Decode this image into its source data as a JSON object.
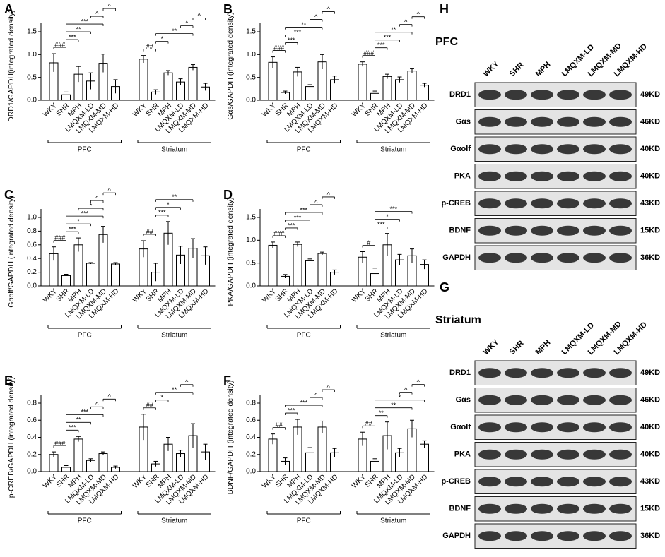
{
  "chart_data": [
    {
      "panel": "A",
      "type": "bar",
      "ylabel": "DRD1/GAPDH(integrated density)",
      "categories": [
        "WKY",
        "SHR",
        "MPH",
        "LMQXM-LD",
        "LMQXM-MD",
        "LMQXM-HD",
        "WKY",
        "SHR",
        "MPH",
        "LMQXM-LD",
        "LMQXM-MD",
        "LMQXM-HD"
      ],
      "groups": [
        "PFC",
        "Striatum"
      ],
      "values": [
        0.82,
        0.12,
        0.57,
        0.42,
        0.81,
        0.3,
        0.9,
        0.18,
        0.6,
        0.4,
        0.72,
        0.29
      ],
      "errors": [
        0.2,
        0.06,
        0.17,
        0.18,
        0.2,
        0.15,
        0.08,
        0.05,
        0.05,
        0.07,
        0.06,
        0.08
      ],
      "ylim": [
        0,
        1.5
      ],
      "yticks": [
        {
          "value": 0,
          "label": "0.0"
        },
        0.5,
        {
          "value": 1,
          "label": "1.0"
        },
        1.5
      ],
      "annotations": [
        {
          "from": 0,
          "to": 1,
          "label": "###"
        },
        {
          "from": 1,
          "to": 2,
          "label": "***"
        },
        {
          "from": 1,
          "to": 3,
          "label": "**"
        },
        {
          "from": 1,
          "to": 4,
          "label": "***"
        },
        {
          "from": 3,
          "to": 4,
          "label": "^"
        },
        {
          "from": 4,
          "to": 5,
          "label": "^"
        },
        {
          "from": 6,
          "to": 7,
          "label": "##"
        },
        {
          "from": 7,
          "to": 8,
          "label": "*"
        },
        {
          "from": 7,
          "to": 10,
          "label": "**"
        },
        {
          "from": 9,
          "to": 10,
          "label": "^"
        },
        {
          "from": 10,
          "to": 11,
          "label": "^"
        }
      ]
    },
    {
      "panel": "B",
      "type": "bar",
      "ylabel": "Gαs/GAPDH (integrated density)",
      "categories": [
        "WKY",
        "SHR",
        "MPH",
        "LMQXM-LD",
        "LMQXM-MD",
        "LMQXM-HD",
        "WKY",
        "SHR",
        "MPH",
        "LMQXM-LD",
        "LMQXM-MD",
        "LMQXM-HD"
      ],
      "groups": [
        "PFC",
        "Striatum"
      ],
      "values": [
        0.83,
        0.17,
        0.62,
        0.3,
        0.84,
        0.45,
        0.79,
        0.15,
        0.52,
        0.45,
        0.64,
        0.33
      ],
      "errors": [
        0.12,
        0.03,
        0.1,
        0.04,
        0.16,
        0.08,
        0.05,
        0.05,
        0.05,
        0.06,
        0.05,
        0.04
      ],
      "ylim": [
        0,
        1.5
      ],
      "yticks": [
        {
          "value": 0,
          "label": "0.0"
        },
        0.5,
        {
          "value": 1,
          "label": "1.0"
        },
        1.5
      ],
      "annotations": [
        {
          "from": 0,
          "to": 1,
          "label": "###"
        },
        {
          "from": 1,
          "to": 2,
          "label": "***"
        },
        {
          "from": 1,
          "to": 3,
          "label": "***"
        },
        {
          "from": 1,
          "to": 4,
          "label": "**"
        },
        {
          "from": 3,
          "to": 4,
          "label": "^"
        },
        {
          "from": 4,
          "to": 5,
          "label": "^"
        },
        {
          "from": 6,
          "to": 7,
          "label": "###"
        },
        {
          "from": 7,
          "to": 8,
          "label": "***"
        },
        {
          "from": 7,
          "to": 9,
          "label": "***"
        },
        {
          "from": 7,
          "to": 10,
          "label": "**"
        },
        {
          "from": 9,
          "to": 10,
          "label": "^"
        },
        {
          "from": 10,
          "to": 11,
          "label": "^"
        }
      ]
    },
    {
      "panel": "C",
      "type": "bar",
      "ylabel": "Gαolf/GAPDH (integrated density)",
      "categories": [
        "WKY",
        "SHR",
        "MPH",
        "LMQXM-LD",
        "LMQXM-MD",
        "LMQXM-HD",
        "WKY",
        "SHR",
        "MPH",
        "LMQXM-LD",
        "LMQXM-MD",
        "LMQXM-HD"
      ],
      "groups": [
        "PFC",
        "Striatum"
      ],
      "values": [
        0.47,
        0.15,
        0.6,
        0.33,
        0.75,
        0.32,
        0.54,
        0.2,
        0.77,
        0.45,
        0.55,
        0.44
      ],
      "errors": [
        0.1,
        0.02,
        0.1,
        0.01,
        0.12,
        0.02,
        0.12,
        0.13,
        0.17,
        0.13,
        0.14,
        0.13
      ],
      "ylim": [
        0,
        1
      ],
      "yticks": [
        {
          "value": 0,
          "label": "0.0"
        },
        0.2,
        0.4,
        0.6,
        0.8,
        {
          "value": 1,
          "label": "1.0"
        }
      ],
      "annotations": [
        {
          "from": 0,
          "to": 1,
          "label": "###"
        },
        {
          "from": 1,
          "to": 2,
          "label": "***"
        },
        {
          "from": 1,
          "to": 3,
          "label": "*"
        },
        {
          "from": 1,
          "to": 4,
          "label": "***"
        },
        {
          "from": 2,
          "to": 4,
          "label": "*"
        },
        {
          "from": 3,
          "to": 4,
          "label": "^"
        },
        {
          "from": 4,
          "to": 5,
          "label": "^"
        },
        {
          "from": 6,
          "to": 7,
          "label": "##"
        },
        {
          "from": 7,
          "to": 8,
          "label": "***"
        },
        {
          "from": 7,
          "to": 9,
          "label": "*"
        },
        {
          "from": 7,
          "to": 10,
          "label": "**"
        }
      ]
    },
    {
      "panel": "D",
      "type": "bar",
      "ylabel": "PKA/GAPDH (integrated density)",
      "categories": [
        "WKY",
        "SHR",
        "MPH",
        "LMQXM-LD",
        "LMQXM-MD",
        "LMQXM-HD",
        "WKY",
        "SHR",
        "MPH",
        "LMQXM-LD",
        "LMQXM-MD",
        "LMQXM-HD"
      ],
      "groups": [
        "PFC",
        "Striatum"
      ],
      "values": [
        0.89,
        0.21,
        0.91,
        0.55,
        0.71,
        0.3,
        0.63,
        0.27,
        0.9,
        0.57,
        0.66,
        0.47
      ],
      "errors": [
        0.07,
        0.04,
        0.05,
        0.04,
        0.03,
        0.05,
        0.12,
        0.12,
        0.25,
        0.12,
        0.15,
        0.1
      ],
      "ylim": [
        0,
        1.5
      ],
      "yticks": [
        {
          "value": 0,
          "label": "0.0"
        },
        0.5,
        {
          "value": 1,
          "label": "1.0"
        },
        1.5
      ],
      "annotations": [
        {
          "from": 0,
          "to": 1,
          "label": "###"
        },
        {
          "from": 1,
          "to": 2,
          "label": "***"
        },
        {
          "from": 1,
          "to": 3,
          "label": "***"
        },
        {
          "from": 1,
          "to": 4,
          "label": "***"
        },
        {
          "from": 3,
          "to": 4,
          "label": "^"
        },
        {
          "from": 4,
          "to": 5,
          "label": "^"
        },
        {
          "from": 6,
          "to": 7,
          "label": "#"
        },
        {
          "from": 7,
          "to": 8,
          "label": "***"
        },
        {
          "from": 7,
          "to": 9,
          "label": "*"
        },
        {
          "from": 7,
          "to": 10,
          "label": "***"
        }
      ]
    },
    {
      "panel": "E",
      "type": "bar",
      "ylabel": "p-CREB/GAPDH (integrated density)",
      "categories": [
        "WKY",
        "SHR",
        "MPH",
        "LMQXM-LD",
        "LMQXM-MD",
        "LMQXM-HD",
        "WKY",
        "SHR",
        "MPH",
        "LMQXM-LD",
        "LMQXM-MD",
        "LMQXM-HD"
      ],
      "groups": [
        "PFC",
        "Striatum"
      ],
      "values": [
        0.2,
        0.05,
        0.38,
        0.13,
        0.21,
        0.05,
        0.52,
        0.09,
        0.32,
        0.21,
        0.42,
        0.23
      ],
      "errors": [
        0.03,
        0.02,
        0.03,
        0.02,
        0.02,
        0.015,
        0.15,
        0.03,
        0.08,
        0.04,
        0.14,
        0.09
      ],
      "ylim": [
        0,
        0.8
      ],
      "yticks": [
        {
          "value": 0,
          "label": "0.0"
        },
        0.2,
        0.4,
        0.6,
        0.8
      ],
      "annotations": [
        {
          "from": 0,
          "to": 1,
          "label": "###"
        },
        {
          "from": 1,
          "to": 2,
          "label": "***"
        },
        {
          "from": 1,
          "to": 3,
          "label": "**"
        },
        {
          "from": 1,
          "to": 4,
          "label": "***"
        },
        {
          "from": 3,
          "to": 4,
          "label": "^"
        },
        {
          "from": 4,
          "to": 5,
          "label": "^"
        },
        {
          "from": 6,
          "to": 7,
          "label": "##"
        },
        {
          "from": 7,
          "to": 8,
          "label": "*"
        },
        {
          "from": 7,
          "to": 10,
          "label": "**"
        },
        {
          "from": 9,
          "to": 10,
          "label": "^"
        }
      ]
    },
    {
      "panel": "F",
      "type": "bar",
      "ylabel": "BDNF/GAPDH (integrated density)",
      "categories": [
        "WKY",
        "SHR",
        "MPH",
        "LMQXM-LD",
        "LMQXM-MD",
        "LMQXM-HD",
        "WKY",
        "SHR",
        "MPH",
        "LMQXM-LD",
        "LMQXM-MD",
        "LMQXM-HD"
      ],
      "groups": [
        "PFC",
        "Striatum"
      ],
      "values": [
        0.38,
        0.12,
        0.52,
        0.22,
        0.52,
        0.22,
        0.38,
        0.12,
        0.42,
        0.22,
        0.5,
        0.32
      ],
      "errors": [
        0.06,
        0.04,
        0.09,
        0.06,
        0.07,
        0.05,
        0.08,
        0.03,
        0.16,
        0.05,
        0.1,
        0.04
      ],
      "ylim": [
        0,
        0.8
      ],
      "yticks": [
        {
          "value": 0,
          "label": "0.0"
        },
        0.2,
        0.4,
        0.6,
        0.8
      ],
      "annotations": [
        {
          "from": 0,
          "to": 1,
          "label": "##"
        },
        {
          "from": 1,
          "to": 2,
          "label": "***"
        },
        {
          "from": 1,
          "to": 4,
          "label": "***"
        },
        {
          "from": 3,
          "to": 4,
          "label": "^"
        },
        {
          "from": 4,
          "to": 5,
          "label": "^"
        },
        {
          "from": 6,
          "to": 7,
          "label": "##"
        },
        {
          "from": 7,
          "to": 8,
          "label": "**"
        },
        {
          "from": 7,
          "to": 10,
          "label": "**"
        },
        {
          "from": 7,
          "to": 11,
          "label": "*"
        },
        {
          "from": 9,
          "to": 10,
          "label": "^"
        },
        {
          "from": 10,
          "to": 11,
          "label": "^"
        }
      ]
    }
  ],
  "blots": [
    {
      "panel": "H",
      "title": "PFC",
      "lanes": [
        "WKY",
        "SHR",
        "MPH",
        "LMQXM-LD",
        "LMQXM-MD",
        "LMQXM-HD"
      ],
      "rows": [
        {
          "protein": "DRD1",
          "size": "49KD"
        },
        {
          "protein": "Gαs",
          "size": "46KD"
        },
        {
          "protein": "Gαolf",
          "size": "40KD"
        },
        {
          "protein": "PKA",
          "size": "40KD"
        },
        {
          "protein": "p-CREB",
          "size": "43KD"
        },
        {
          "protein": "BDNF",
          "size": "15KD"
        },
        {
          "protein": "GAPDH",
          "size": "36KD"
        }
      ]
    },
    {
      "panel": "G",
      "title": "Striatum",
      "lanes": [
        "WKY",
        "SHR",
        "MPH",
        "LMQXM-LD",
        "LMQXM-MD",
        "LMQXM-HD"
      ],
      "rows": [
        {
          "protein": "DRD1",
          "size": "49KD"
        },
        {
          "protein": "Gαs",
          "size": "46KD"
        },
        {
          "protein": "Gαolf",
          "size": "40KD"
        },
        {
          "protein": "PKA",
          "size": "40KD"
        },
        {
          "protein": "p-CREB",
          "size": "43KD"
        },
        {
          "protein": "BDNF",
          "size": "15KD"
        },
        {
          "protein": "GAPDH",
          "size": "36KD"
        }
      ]
    }
  ]
}
